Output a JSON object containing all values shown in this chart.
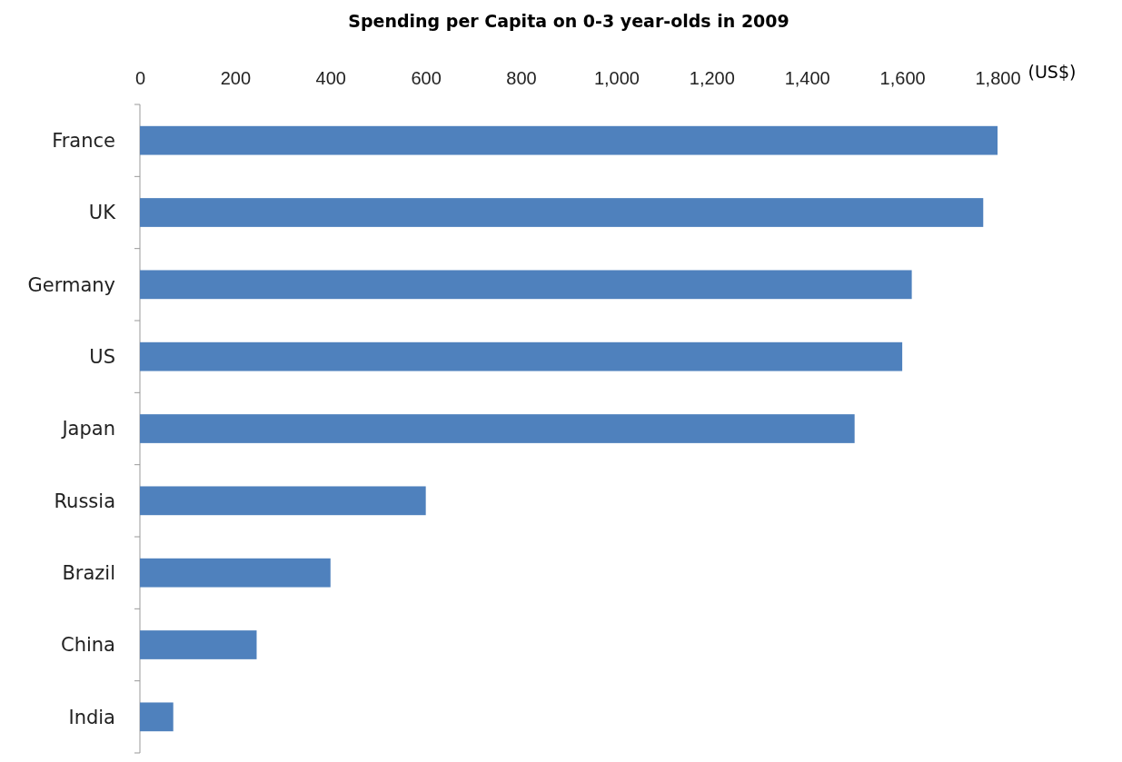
{
  "chart_data": {
    "type": "bar",
    "orientation": "horizontal",
    "title": "Spending per Capita on 0-3 year-olds in 2009",
    "xlabel": "(US$)",
    "categories": [
      "France",
      "UK",
      "Germany",
      "US",
      "Japan",
      "Russia",
      "Brazil",
      "China",
      "India"
    ],
    "values": [
      1800,
      1770,
      1620,
      1600,
      1500,
      600,
      400,
      245,
      70
    ],
    "color": "#4f81bd",
    "xlim": [
      0,
      1800
    ],
    "xticks": [
      0,
      200,
      400,
      {
        "value": 600,
        "label": "600"
      },
      {
        "value": 800,
        "label": "800"
      },
      {
        "value": 1000,
        "label": "1,000"
      },
      {
        "value": 1200,
        "label": "1,200"
      },
      {
        "value": 1400,
        "label": "1,400"
      },
      {
        "value": 1600,
        "label": "1,600"
      },
      {
        "value": 1800,
        "label": "1,800"
      }
    ],
    "grid": false
  }
}
